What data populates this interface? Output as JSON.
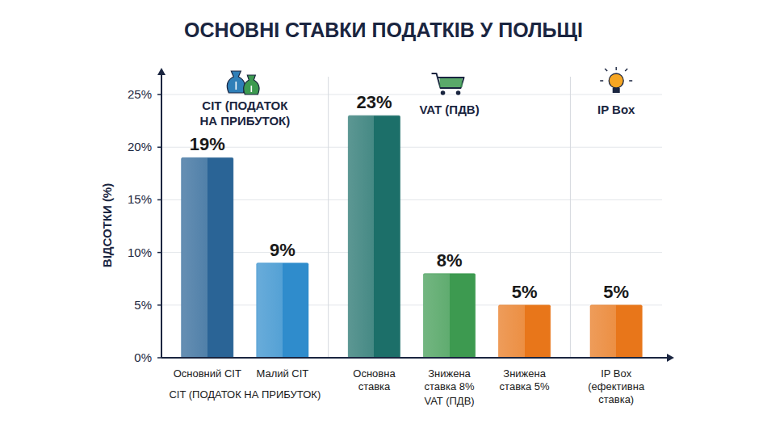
{
  "chart_data": {
    "type": "bar",
    "title": "ОСНОВНІ СТАВКИ ПОДАТКІВ У ПОЛЬЩІ",
    "y_label": "ВІДСОТКИ (%)",
    "categories": [
      "Основний CIT",
      "Малий CIT",
      "Основна ставка",
      "Знижена ставка 8%",
      "Знижена ставка 5%",
      "IP Box (ефективна ставка)"
    ],
    "values": [
      19,
      9,
      23,
      8,
      5,
      5
    ],
    "value_labels": [
      "19%",
      "9%",
      "23%",
      "8%",
      "5%",
      "5%"
    ],
    "colors": [
      "#2a6496",
      "#2f8ccc",
      "#1c6f69",
      "#3d9a50",
      "#e8761a",
      "#e8761a"
    ],
    "groups": [
      {
        "title": "CIT (ПОДАТОК НА ПРИБУТОК)",
        "label": "CIT (ПОДАТОК НА ПРИБУТОК)",
        "members": [
          0,
          1
        ]
      },
      {
        "title": "VAT (ПДВ)",
        "label": "VAT (ПДВ)",
        "members": [
          2,
          3,
          4
        ]
      },
      {
        "title": "IP Box",
        "members": [
          5
        ]
      }
    ],
    "ylim": [
      0,
      27
    ],
    "yticks": [
      {
        "value": 0,
        "label": "0%"
      },
      {
        "value": 5,
        "label": "5%"
      },
      {
        "value": 10,
        "label": "10%"
      },
      {
        "value": 15,
        "label": "15%"
      },
      {
        "value": 20,
        "label": "20%"
      },
      {
        "value": 25,
        "label": "25%"
      }
    ],
    "grid": true,
    "data_labels": true
  }
}
